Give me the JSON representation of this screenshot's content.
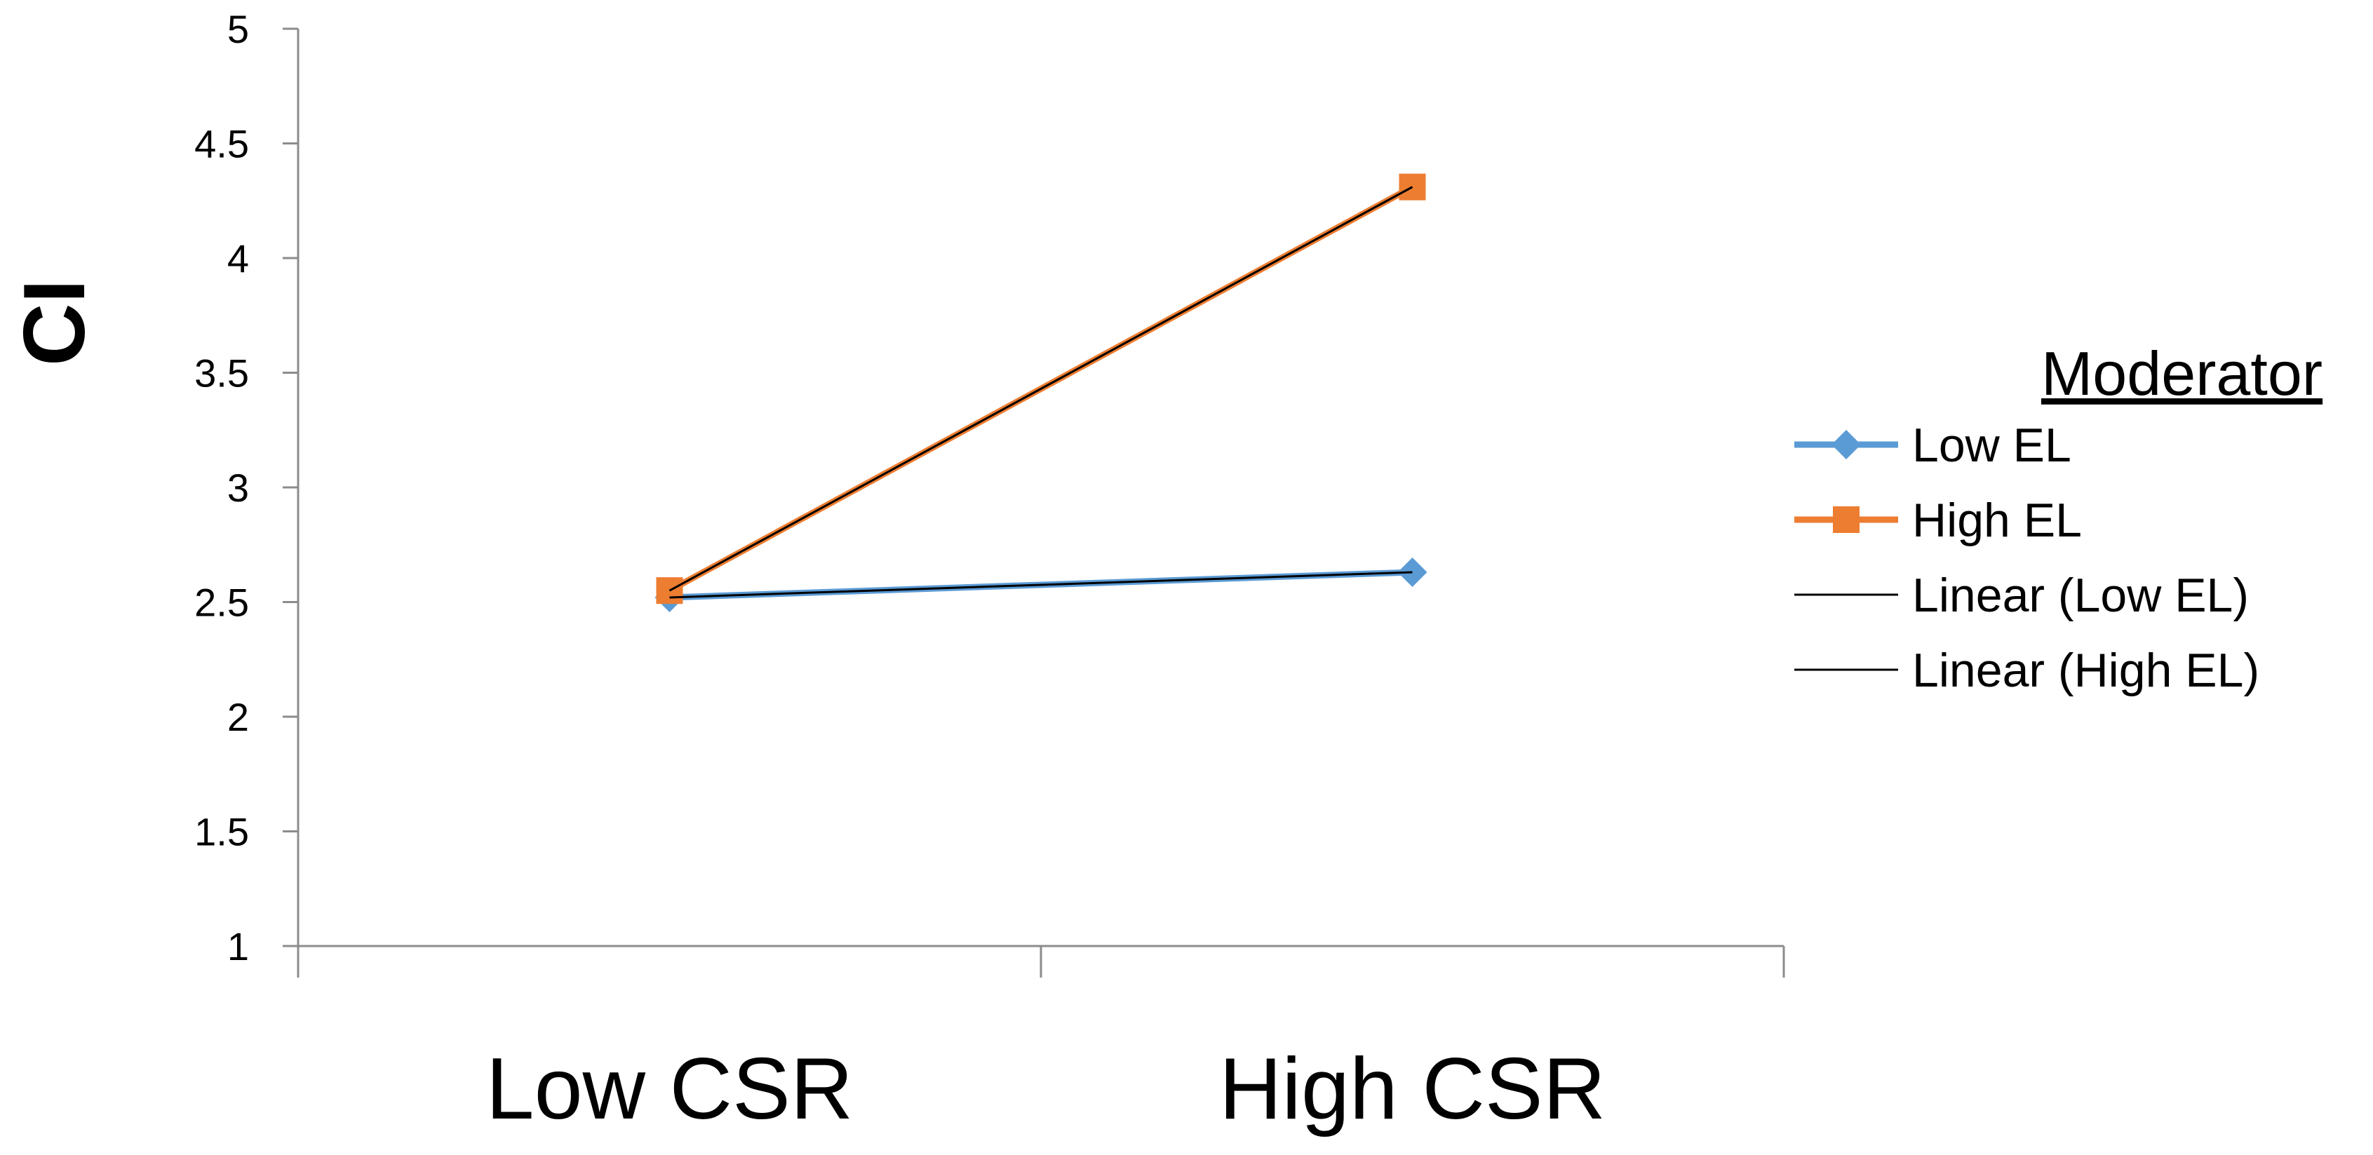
{
  "chart_data": {
    "type": "line",
    "categories": [
      "Low CSR",
      "High CSR"
    ],
    "ylabel": "CI",
    "xlabel": "",
    "title": "",
    "ylim": [
      1,
      5
    ],
    "yticks": [
      "1",
      "1.5",
      "2",
      "2.5",
      "3",
      "3.5",
      "4",
      "4.5",
      "5"
    ],
    "series": [
      {
        "name": "Low EL",
        "values": [
          2.52,
          2.63
        ],
        "color": "#5B9BD5",
        "marker": "diamond"
      },
      {
        "name": "High EL",
        "values": [
          2.55,
          4.31
        ],
        "color": "#ED7D31",
        "marker": "square"
      }
    ],
    "trendlines": [
      {
        "name": "Linear (Low EL)",
        "of": "Low EL",
        "color": "#000000"
      },
      {
        "name": "Linear (High EL)",
        "of": "High EL",
        "color": "#000000"
      }
    ],
    "legend": {
      "title": "Moderator",
      "position": "right"
    },
    "grid": false
  }
}
